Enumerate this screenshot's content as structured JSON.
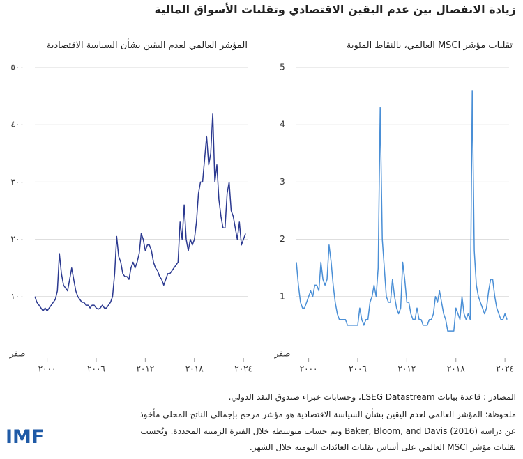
{
  "title": "زيادة الانفصال بين عدم اليقين الاقتصادي وتقلبات الأسواق المالية",
  "chart_data": [
    {
      "type": "line",
      "title": "المؤشر العالمي لعدم اليقين بشأن السياسة الاقتصادية",
      "color": "#2b3990",
      "grid": true,
      "xlim": [
        1998.5,
        2024.5
      ],
      "ylim": [
        0,
        500
      ],
      "xticks": [
        {
          "value": 2000,
          "label": "٢٠٠٠"
        },
        {
          "value": 2006,
          "label": "٢٠٠٦"
        },
        {
          "value": 2012,
          "label": "٢٠١٢"
        },
        {
          "value": 2018,
          "label": "٢٠١٨"
        },
        {
          "value": 2024,
          "label": "٢٠٢٤"
        }
      ],
      "yticks": [
        {
          "value": 0,
          "label": "صفر"
        },
        {
          "value": 100,
          "label": "١٠٠"
        },
        {
          "value": 200,
          "label": "٢٠٠"
        },
        {
          "value": 300,
          "label": "٣٠٠"
        },
        {
          "value": 400,
          "label": "٤٠٠"
        },
        {
          "value": 500,
          "label": "٥٠٠"
        }
      ],
      "x": [
        1998.5,
        1998.75,
        1999,
        1999.25,
        1999.5,
        1999.75,
        2000,
        2000.25,
        2000.5,
        2000.75,
        2001,
        2001.25,
        2001.5,
        2001.75,
        2002,
        2002.25,
        2002.5,
        2002.75,
        2003,
        2003.25,
        2003.5,
        2003.75,
        2004,
        2004.25,
        2004.5,
        2004.75,
        2005,
        2005.25,
        2005.5,
        2005.75,
        2006,
        2006.25,
        2006.5,
        2006.75,
        2007,
        2007.25,
        2007.5,
        2007.75,
        2008,
        2008.25,
        2008.5,
        2008.75,
        2009,
        2009.25,
        2009.5,
        2009.75,
        2010,
        2010.25,
        2010.5,
        2010.75,
        2011,
        2011.25,
        2011.5,
        2011.75,
        2012,
        2012.25,
        2012.5,
        2012.75,
        2013,
        2013.25,
        2013.5,
        2013.75,
        2014,
        2014.25,
        2014.5,
        2014.75,
        2015,
        2015.25,
        2015.5,
        2015.75,
        2016,
        2016.25,
        2016.5,
        2016.75,
        2017,
        2017.25,
        2017.5,
        2017.75,
        2018,
        2018.25,
        2018.5,
        2018.75,
        2019,
        2019.25,
        2019.5,
        2019.75,
        2020,
        2020.25,
        2020.5,
        2020.75,
        2021,
        2021.25,
        2021.5,
        2021.75,
        2022,
        2022.25,
        2022.5,
        2022.75,
        2023,
        2023.25,
        2023.5,
        2023.75,
        2024,
        2024.25
      ],
      "values": [
        100,
        90,
        85,
        80,
        75,
        80,
        75,
        80,
        85,
        90,
        95,
        110,
        175,
        140,
        120,
        115,
        110,
        130,
        150,
        130,
        110,
        100,
        95,
        90,
        90,
        85,
        85,
        80,
        85,
        85,
        80,
        78,
        80,
        85,
        80,
        80,
        85,
        90,
        100,
        140,
        205,
        170,
        160,
        140,
        135,
        135,
        130,
        150,
        160,
        150,
        160,
        175,
        210,
        200,
        180,
        190,
        190,
        180,
        160,
        150,
        145,
        135,
        130,
        120,
        130,
        140,
        140,
        145,
        150,
        155,
        160,
        230,
        200,
        260,
        200,
        180,
        200,
        190,
        200,
        230,
        280,
        300,
        300,
        340,
        380,
        330,
        350,
        420,
        300,
        330,
        270,
        240,
        220,
        220,
        280,
        300,
        250,
        240,
        220,
        200,
        230,
        190,
        200,
        210
      ]
    },
    {
      "type": "line",
      "title": "تقلبات مؤشر MSCI العالمي، بالنقاط المئوية",
      "color": "#4a8fd6",
      "grid": true,
      "xlim": [
        1998.5,
        2024.5
      ],
      "ylim": [
        0,
        5
      ],
      "xticks": [
        {
          "value": 2000,
          "label": "٢٠٠٠"
        },
        {
          "value": 2006,
          "label": "٢٠٠٦"
        },
        {
          "value": 2012,
          "label": "٢٠١٢"
        },
        {
          "value": 2018,
          "label": "٢٠١٨"
        },
        {
          "value": 2024,
          "label": "٢٠٢٤"
        }
      ],
      "yticks": [
        {
          "value": 0,
          "label": "صفر"
        },
        1,
        2,
        3,
        4,
        5
      ],
      "x": [
        1998.5,
        1998.75,
        1999,
        1999.25,
        1999.5,
        1999.75,
        2000,
        2000.25,
        2000.5,
        2000.75,
        2001,
        2001.25,
        2001.5,
        2001.75,
        2002,
        2002.25,
        2002.5,
        2002.75,
        2003,
        2003.25,
        2003.5,
        2003.75,
        2004,
        2004.25,
        2004.5,
        2004.75,
        2005,
        2005.25,
        2005.5,
        2005.75,
        2006,
        2006.25,
        2006.5,
        2006.75,
        2007,
        2007.25,
        2007.5,
        2007.75,
        2008,
        2008.25,
        2008.5,
        2008.75,
        2009,
        2009.25,
        2009.5,
        2009.75,
        2010,
        2010.25,
        2010.5,
        2010.75,
        2011,
        2011.25,
        2011.5,
        2011.75,
        2012,
        2012.25,
        2012.5,
        2012.75,
        2013,
        2013.25,
        2013.5,
        2013.75,
        2014,
        2014.25,
        2014.5,
        2014.75,
        2015,
        2015.25,
        2015.5,
        2015.75,
        2016,
        2016.25,
        2016.5,
        2016.75,
        2017,
        2017.25,
        2017.5,
        2017.75,
        2018,
        2018.25,
        2018.5,
        2018.75,
        2019,
        2019.25,
        2019.5,
        2019.75,
        2020,
        2020.25,
        2020.5,
        2020.75,
        2021,
        2021.25,
        2021.5,
        2021.75,
        2022,
        2022.25,
        2022.5,
        2022.75,
        2023,
        2023.25,
        2023.5,
        2023.75,
        2024,
        2024.25
      ],
      "values": [
        1.6,
        1.2,
        0.9,
        0.8,
        0.8,
        0.9,
        1.0,
        1.1,
        1.0,
        1.2,
        1.2,
        1.1,
        1.6,
        1.3,
        1.2,
        1.3,
        1.9,
        1.6,
        1.2,
        0.9,
        0.7,
        0.6,
        0.6,
        0.6,
        0.6,
        0.5,
        0.5,
        0.5,
        0.5,
        0.5,
        0.5,
        0.8,
        0.6,
        0.5,
        0.6,
        0.6,
        0.9,
        1.0,
        1.2,
        1.0,
        1.5,
        4.3,
        2.0,
        1.5,
        1.0,
        0.9,
        0.9,
        1.3,
        1.0,
        0.8,
        0.7,
        0.8,
        1.6,
        1.3,
        0.9,
        0.9,
        0.7,
        0.6,
        0.6,
        0.8,
        0.6,
        0.6,
        0.5,
        0.5,
        0.5,
        0.6,
        0.6,
        0.7,
        1.0,
        0.9,
        1.1,
        0.9,
        0.7,
        0.6,
        0.4,
        0.4,
        0.4,
        0.4,
        0.8,
        0.7,
        0.6,
        1.0,
        0.7,
        0.6,
        0.7,
        0.6,
        4.6,
        1.8,
        1.2,
        1.0,
        0.9,
        0.8,
        0.7,
        0.8,
        1.1,
        1.3,
        1.3,
        1.0,
        0.8,
        0.7,
        0.6,
        0.6,
        0.7,
        0.6
      ]
    }
  ],
  "notes": [
    "المصادر : قاعدة بيانات LSEG Datastream، وحسابات خبراء صندوق النقد الدولي.",
    "ملحوظة: المؤشر العالمي لعدم اليقين بشأن السياسة الاقتصادية هو مؤشر مرجح بإجمالي الناتج المحلي مأخوذ",
    "عن دراسة Baker, Bloom, and Davis (2016) وتم حساب متوسطه خلال الفترة الزمنية المحددة. وتُحسب",
    "تقلبات مؤشر MSCI العالمي على أساس تقلبات العائدات اليومية خلال الشهر."
  ],
  "logo": "IMF"
}
